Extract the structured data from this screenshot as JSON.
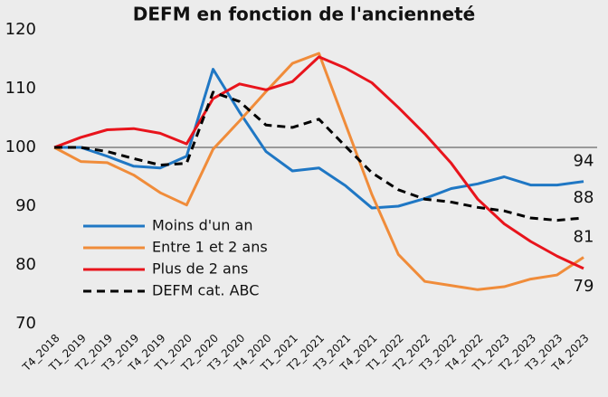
{
  "chart_data": {
    "type": "line",
    "title": "DEFM en fonction de l'ancienneté",
    "categories": [
      "T4_2018",
      "T1_2019",
      "T2_2019",
      "T3_2019",
      "T4_2019",
      "T1_2020",
      "T2_2020",
      "T3_2020",
      "T4_2020",
      "T1_2021",
      "T2_2021",
      "T3_2021",
      "T4_2021",
      "T1_2022",
      "T2_2022",
      "T3_2022",
      "T4_2022",
      "T1_2023",
      "T2_2023",
      "T3_2023",
      "T4_2023"
    ],
    "series": [
      {
        "name": "Moins d'un an",
        "color": "#1f77c4",
        "dashed": false,
        "values": [
          100,
          100,
          98.5,
          96.8,
          96.5,
          98.5,
          113.3,
          106,
          99.3,
          96,
          96.5,
          93.5,
          89.7,
          90,
          91.3,
          93,
          93.8,
          95,
          93.6,
          93.6,
          94.2
        ],
        "value_labels": [
          null,
          null,
          null,
          null,
          null,
          null,
          null,
          null,
          null,
          null,
          null,
          null,
          null,
          null,
          null,
          null,
          null,
          null,
          null,
          null,
          "94"
        ]
      },
      {
        "name": "Entre 1 et 2 ans",
        "color": "#f08c3a",
        "dashed": false,
        "values": [
          100,
          97.6,
          97.4,
          95.3,
          92.3,
          90.2,
          99.7,
          104.5,
          109.5,
          114.3,
          116,
          104,
          92,
          81.8,
          77.2,
          76.5,
          75.8,
          76.3,
          77.6,
          78.3,
          81.3
        ],
        "value_labels": [
          null,
          null,
          null,
          null,
          null,
          null,
          null,
          null,
          null,
          null,
          null,
          null,
          null,
          null,
          null,
          null,
          null,
          null,
          null,
          null,
          "81"
        ]
      },
      {
        "name": "Plus de 2 ans",
        "color": "#e8141c",
        "dashed": false,
        "values": [
          100,
          101.7,
          103,
          103.2,
          102.4,
          100.6,
          108.3,
          110.8,
          109.8,
          111.2,
          115.4,
          113.5,
          111,
          106.8,
          102.3,
          97.3,
          91.2,
          87,
          84,
          81.5,
          79.4
        ],
        "value_labels": [
          null,
          null,
          null,
          null,
          null,
          null,
          null,
          null,
          null,
          null,
          null,
          null,
          null,
          null,
          null,
          null,
          null,
          null,
          null,
          null,
          "79"
        ]
      },
      {
        "name": "DEFM cat. ABC",
        "color": "#000000",
        "dashed": true,
        "values": [
          100,
          100,
          99.3,
          98.1,
          97,
          97.3,
          109.4,
          107.8,
          103.8,
          103.4,
          104.8,
          100.2,
          95.7,
          92.8,
          91.2,
          90.7,
          89.8,
          89.2,
          88,
          87.6,
          88
        ],
        "value_labels": [
          null,
          null,
          null,
          null,
          null,
          null,
          null,
          null,
          null,
          null,
          null,
          null,
          null,
          null,
          null,
          null,
          null,
          null,
          null,
          null,
          "88"
        ]
      }
    ],
    "ylim": [
      70,
      120
    ],
    "yticks": [
      70,
      80,
      90,
      100,
      110,
      120
    ],
    "reference_line": 100,
    "legend": "center-left"
  }
}
